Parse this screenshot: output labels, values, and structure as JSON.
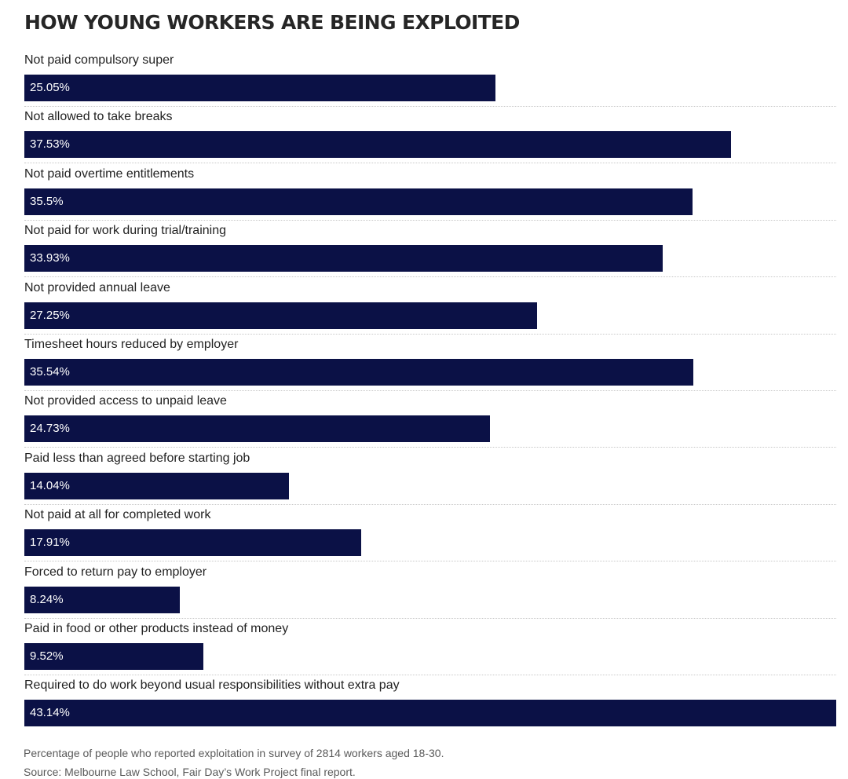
{
  "chart_data": {
    "type": "bar",
    "orientation": "horizontal",
    "title": "HOW YOUNG WORKERS ARE BEING EXPLOITED",
    "categories": [
      "Not paid compulsory super",
      "Not allowed to take breaks",
      "Not paid overtime entitlements",
      "Not paid for work during trial/training",
      "Not provided annual leave",
      "Timesheet hours reduced by employer",
      "Not provided access to unpaid leave",
      "Paid less than agreed before starting job",
      "Not paid at all for completed work",
      "Forced to return pay to employer",
      "Paid in food or other products instead of money",
      "Required to do work beyond usual responsibilities without extra pay"
    ],
    "values": [
      25.05,
      37.53,
      35.5,
      33.93,
      27.25,
      35.54,
      24.73,
      14.04,
      17.91,
      8.24,
      9.52,
      43.14
    ],
    "value_labels": [
      "25.05%",
      "37.53%",
      "35.5%",
      "33.93%",
      "27.25%",
      "35.54%",
      "24.73%",
      "14.04%",
      "17.91%",
      "8.24%",
      "9.52%",
      "43.14%"
    ],
    "xlim": [
      0,
      43.14
    ],
    "bar_color": "#0b1146",
    "grid": false,
    "legend": "none"
  },
  "footnotes": {
    "note": "Percentage of people who reported exploitation in survey of 2814 workers aged 18-30.",
    "source": "Source: Melbourne Law School, Fair Day’s Work Project final report."
  }
}
